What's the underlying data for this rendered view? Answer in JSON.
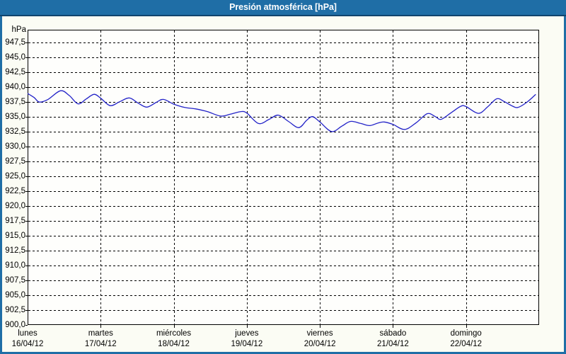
{
  "window": {
    "title": "Presión atmosférica [hPa]"
  },
  "colors": {
    "titlebar_bg": "#1f6ea6",
    "titlebar_border": "#10456e",
    "titlebar_text": "#ffffff",
    "panel_border": "#1f6ea6",
    "panel_bg": "#fbfcf4",
    "plot_bg": "#fefefc",
    "grid": "#000000",
    "axis": "#000000",
    "line": "#2323c8",
    "label_text": "#000000"
  },
  "chart_data": {
    "type": "line",
    "title": "Presión atmosférica [hPa]",
    "ylabel": "hPa",
    "ylim": [
      900,
      949.6
    ],
    "y_tick_step": 2.5,
    "y_tick_labels": [
      "947,5",
      "945,0",
      "942,5",
      "940,0",
      "937,5",
      "935,0",
      "932,5",
      "930,0",
      "927,5",
      "925,0",
      "922,5",
      "920,0",
      "917,5",
      "915,0",
      "912,5",
      "910,0",
      "907,5",
      "905,0",
      "902,5",
      "900,0"
    ],
    "grid": "dashed",
    "legend": "none",
    "x_axis": {
      "days": [
        {
          "name": "lunes",
          "date": "16/04/12"
        },
        {
          "name": "martes",
          "date": "17/04/12"
        },
        {
          "name": "miércoles",
          "date": "18/04/12"
        },
        {
          "name": "jueves",
          "date": "19/04/12"
        },
        {
          "name": "viernes",
          "date": "20/04/12"
        },
        {
          "name": "sábado",
          "date": "21/04/12"
        },
        {
          "name": "domingo",
          "date": "22/04/12"
        }
      ]
    },
    "series": [
      {
        "name": "Presión atmosférica [hPa]",
        "color": "#2323c8",
        "points_day_value": [
          [
            0.0,
            938.9
          ],
          [
            0.09,
            938.2
          ],
          [
            0.16,
            937.45
          ],
          [
            0.28,
            937.9
          ],
          [
            0.45,
            939.35
          ],
          [
            0.57,
            938.55
          ],
          [
            0.69,
            937.15
          ],
          [
            0.8,
            937.95
          ],
          [
            0.91,
            938.75
          ],
          [
            1.0,
            938.1
          ],
          [
            1.13,
            936.85
          ],
          [
            1.26,
            937.5
          ],
          [
            1.39,
            938.15
          ],
          [
            1.51,
            937.3
          ],
          [
            1.63,
            936.6
          ],
          [
            1.76,
            937.4
          ],
          [
            1.86,
            937.9
          ],
          [
            2.0,
            937.1
          ],
          [
            2.15,
            936.55
          ],
          [
            2.3,
            936.3
          ],
          [
            2.46,
            935.85
          ],
          [
            2.64,
            935.1
          ],
          [
            2.77,
            935.4
          ],
          [
            2.92,
            935.85
          ],
          [
            3.0,
            935.6
          ],
          [
            3.16,
            933.85
          ],
          [
            3.3,
            934.5
          ],
          [
            3.43,
            935.25
          ],
          [
            3.57,
            934.2
          ],
          [
            3.71,
            933.15
          ],
          [
            3.82,
            934.4
          ],
          [
            3.9,
            935.0
          ],
          [
            4.0,
            934.1
          ],
          [
            4.16,
            932.5
          ],
          [
            4.3,
            933.4
          ],
          [
            4.42,
            934.2
          ],
          [
            4.56,
            933.85
          ],
          [
            4.68,
            933.5
          ],
          [
            4.8,
            933.95
          ],
          [
            4.88,
            934.1
          ],
          [
            5.0,
            933.7
          ],
          [
            5.16,
            932.85
          ],
          [
            5.32,
            934.0
          ],
          [
            5.47,
            935.5
          ],
          [
            5.58,
            935.0
          ],
          [
            5.66,
            934.55
          ],
          [
            5.8,
            935.7
          ],
          [
            5.93,
            936.75
          ],
          [
            6.0,
            936.7
          ],
          [
            6.17,
            935.55
          ],
          [
            6.3,
            936.7
          ],
          [
            6.42,
            938.0
          ],
          [
            6.52,
            937.55
          ],
          [
            6.63,
            936.8
          ],
          [
            6.71,
            936.55
          ],
          [
            6.83,
            937.4
          ],
          [
            6.95,
            938.7
          ]
        ]
      }
    ]
  }
}
